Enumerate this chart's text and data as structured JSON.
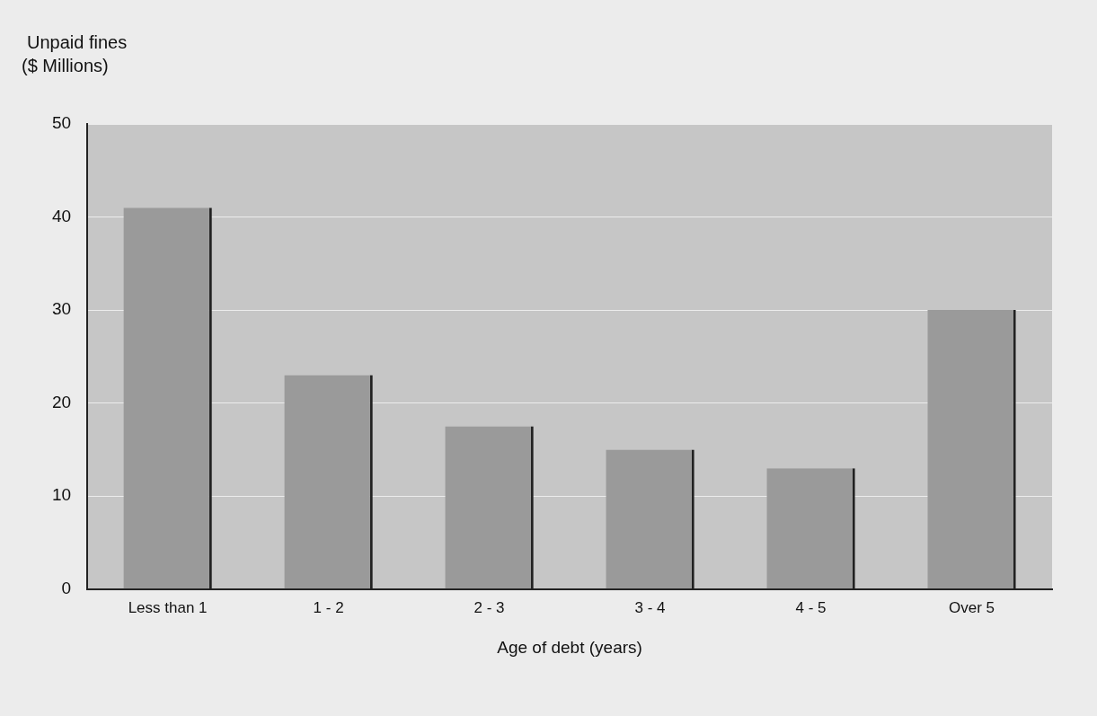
{
  "chart_data": {
    "type": "bar",
    "ylabel": "Unpaid fines\n($ Millions)",
    "xlabel": "Age of debt (years)",
    "categories": [
      "Less than 1",
      "1 - 2",
      "2 - 3",
      "3 - 4",
      "4 - 5",
      "Over 5"
    ],
    "values": [
      41,
      23,
      17.5,
      15,
      13,
      30
    ],
    "color": "#9a9a9a",
    "ylim": [
      0,
      50
    ],
    "yticks": [
      0,
      10,
      20,
      30,
      40,
      50
    ],
    "grid": "y"
  }
}
